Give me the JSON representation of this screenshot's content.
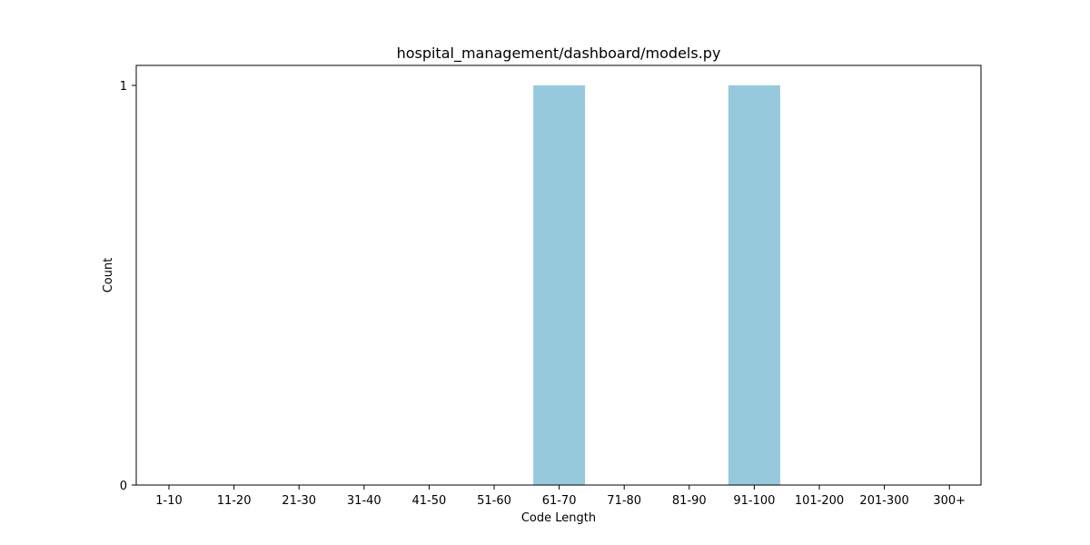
{
  "chart_data": {
    "type": "bar",
    "title": "hospital_management/dashboard/models.py",
    "xlabel": "Code Length",
    "ylabel": "Count",
    "categories": [
      "1-10",
      "11-20",
      "21-30",
      "31-40",
      "41-50",
      "51-60",
      "61-70",
      "71-80",
      "81-90",
      "91-100",
      "101-200",
      "201-300",
      "300+"
    ],
    "values": [
      0,
      0,
      0,
      0,
      0,
      0,
      1,
      0,
      0,
      1,
      0,
      0,
      0
    ],
    "yticks": [
      0,
      1
    ],
    "ylim": [
      0,
      1.05
    ],
    "grid": false,
    "bar_color": "#96c9dc"
  }
}
